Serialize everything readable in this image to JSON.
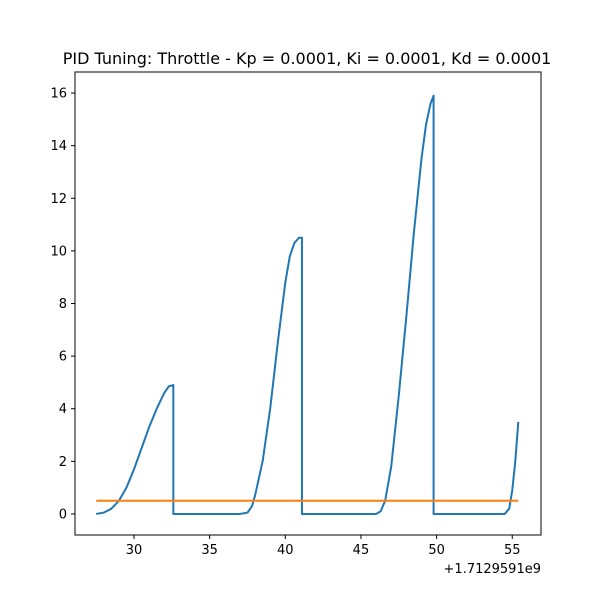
{
  "chart_data": {
    "type": "line",
    "title": "PID Tuning: Throttle - Kp = 0.0001, Ki = 0.0001, Kd = 0.0001",
    "xlabel": "",
    "ylabel": "",
    "x_offset_label": "+1.7129591e9",
    "xlim": [
      26.1,
      56.9
    ],
    "ylim": [
      -0.8,
      16.8
    ],
    "xticks": [
      30,
      35,
      40,
      45,
      50,
      55
    ],
    "xtick_labels": [
      "30",
      "35",
      "40",
      "45",
      "50",
      "55"
    ],
    "yticks": [
      0,
      2,
      4,
      6,
      8,
      10,
      12,
      14,
      16
    ],
    "ytick_labels": [
      "0",
      "2",
      "4",
      "6",
      "8",
      "10",
      "12",
      "14",
      "16"
    ],
    "grid": false,
    "series": [
      {
        "color": "#1f77b4",
        "x": [
          27.5,
          28.0,
          28.5,
          29.0,
          29.5,
          30.0,
          30.5,
          31.0,
          31.5,
          32.0,
          32.3,
          32.6,
          32.6,
          33.0,
          35.0,
          37.0,
          37.5,
          37.8,
          38.0,
          38.5,
          39.0,
          39.5,
          40.0,
          40.3,
          40.6,
          40.9,
          41.1,
          41.1,
          42.0,
          44.0,
          46.0,
          46.3,
          46.6,
          47.0,
          47.5,
          48.0,
          48.5,
          49.0,
          49.3,
          49.6,
          49.8,
          49.8,
          51.0,
          53.0,
          54.5,
          54.8,
          55.0,
          55.2,
          55.4
        ],
        "y": [
          0.0,
          0.05,
          0.2,
          0.5,
          1.0,
          1.7,
          2.5,
          3.3,
          4.0,
          4.6,
          4.85,
          4.9,
          0.0,
          0.0,
          0.0,
          0.0,
          0.05,
          0.3,
          0.7,
          2.0,
          4.0,
          6.5,
          8.8,
          9.8,
          10.3,
          10.5,
          10.5,
          0.0,
          0.0,
          0.0,
          0.0,
          0.1,
          0.5,
          1.8,
          4.5,
          7.5,
          10.7,
          13.5,
          14.8,
          15.6,
          15.9,
          0.0,
          0.0,
          0.0,
          0.0,
          0.2,
          0.9,
          2.0,
          3.5
        ]
      },
      {
        "color": "#ff7f0e",
        "x": [
          27.5,
          55.4
        ],
        "y": [
          0.5,
          0.5
        ]
      }
    ]
  }
}
